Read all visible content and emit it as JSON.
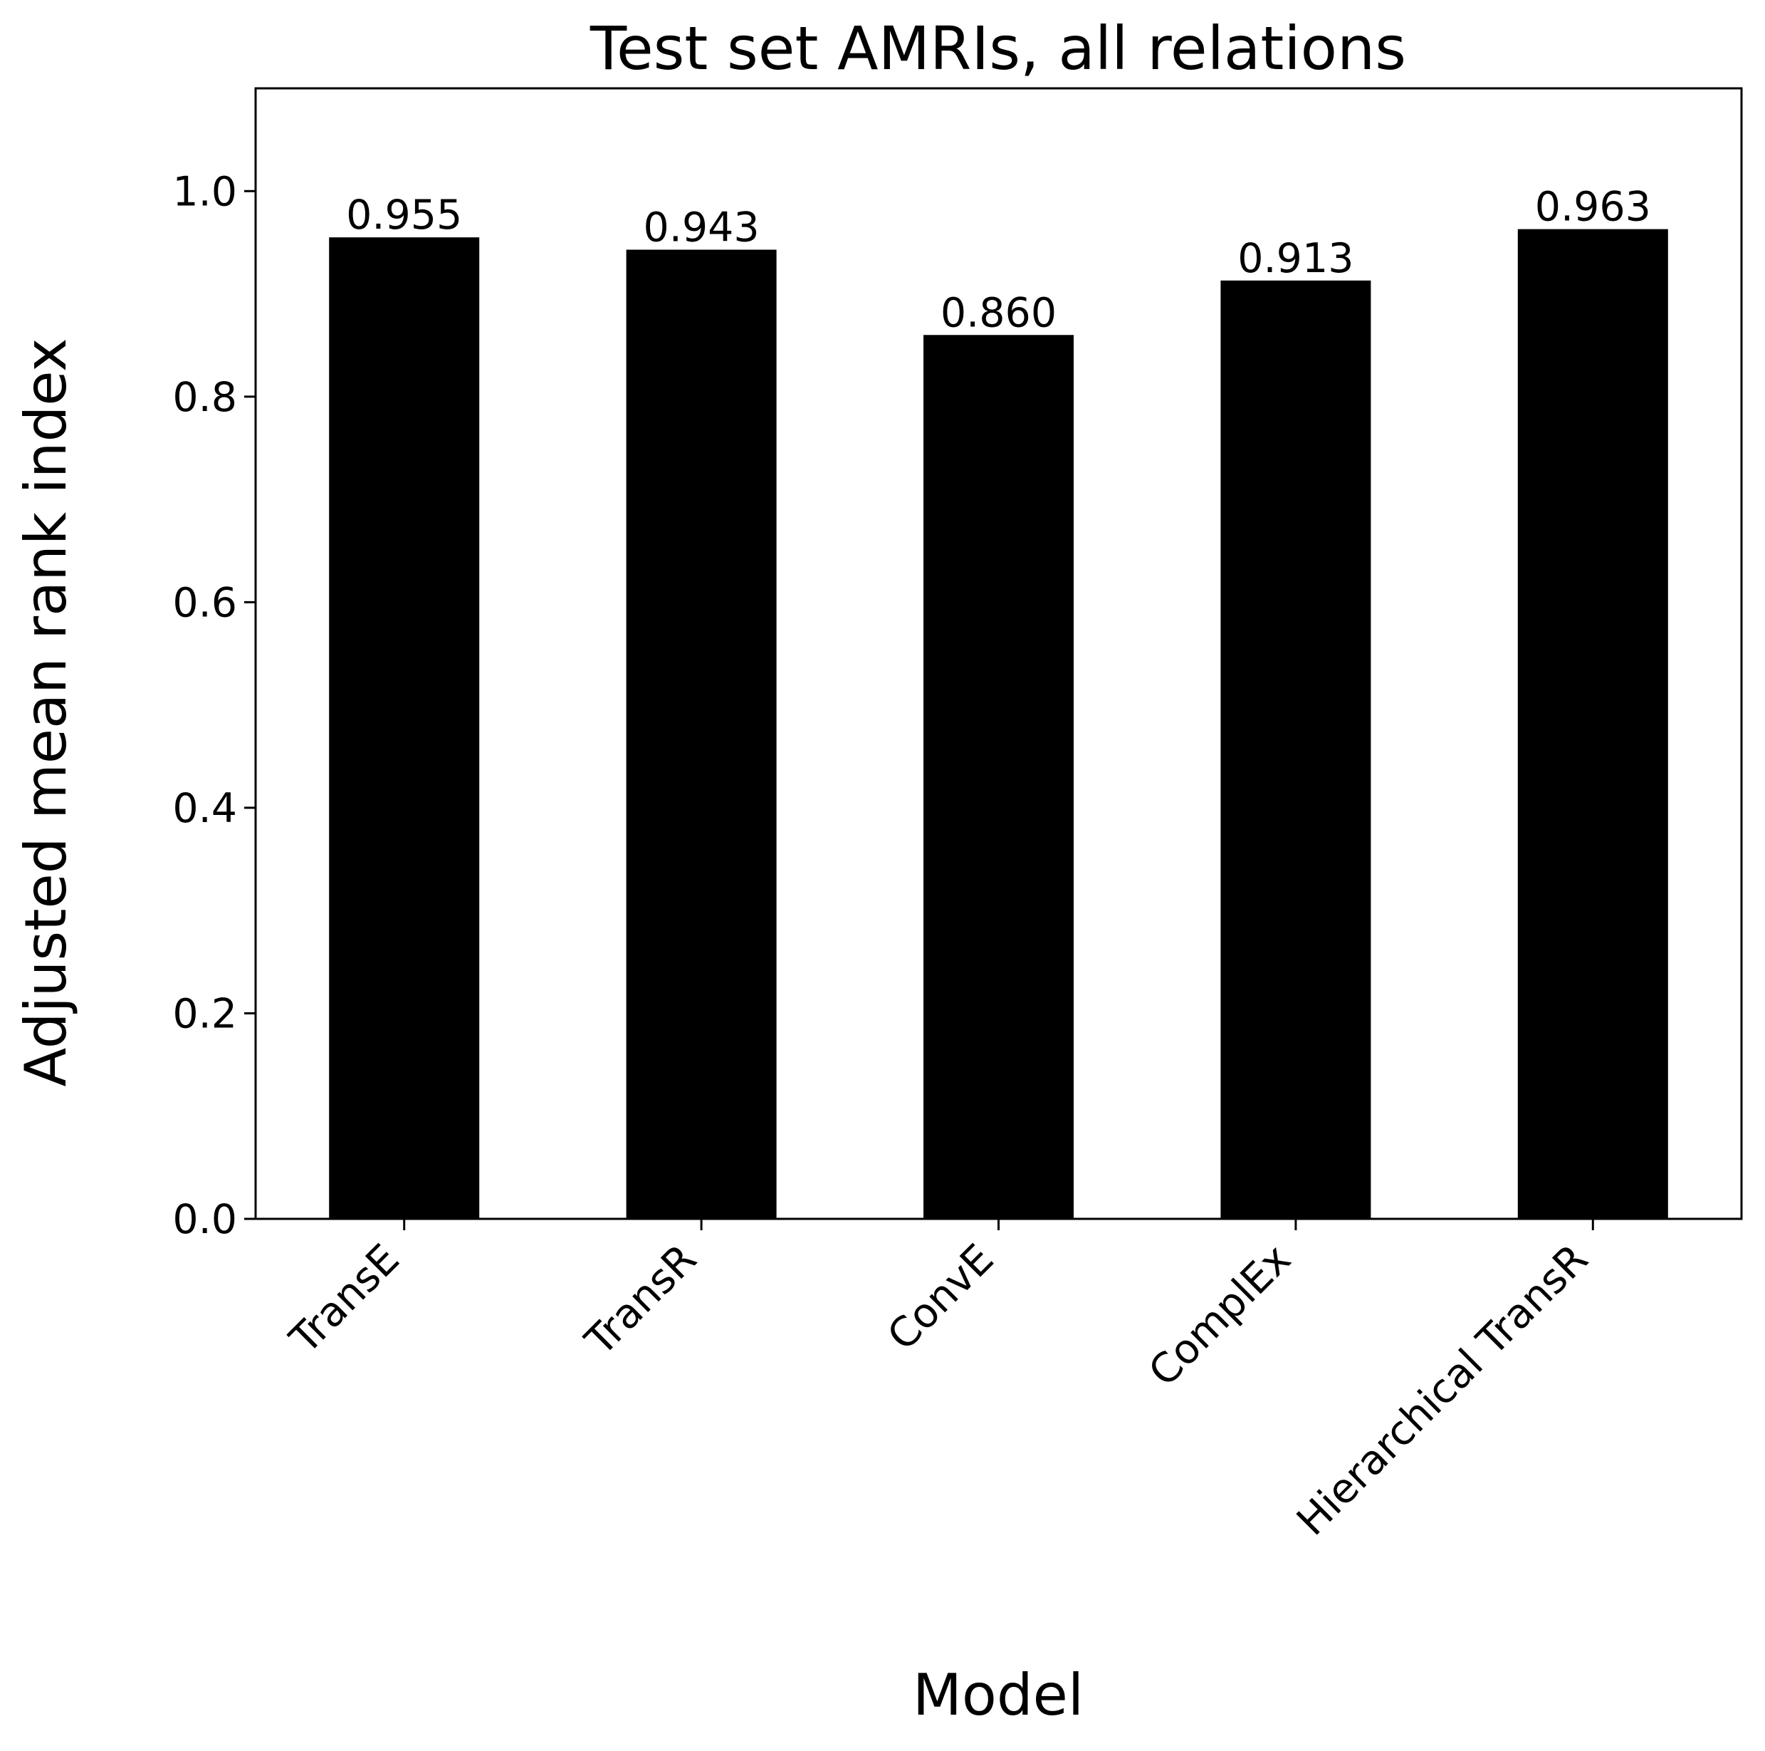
{
  "chart_data": {
    "type": "bar",
    "title": "Test set AMRIs, all relations",
    "xlabel": "Model",
    "ylabel": "Adjusted mean rank index",
    "categories": [
      "TransE",
      "TransR",
      "ConvE",
      "ComplEx",
      "Hierarchical TransR"
    ],
    "values": [
      0.955,
      0.943,
      0.86,
      0.913,
      0.963
    ],
    "value_labels": [
      "0.955",
      "0.943",
      "0.860",
      "0.913",
      "0.963"
    ],
    "ylim": [
      0,
      1.1
    ],
    "yticks": [
      0.0,
      0.2,
      0.4,
      0.6,
      0.8,
      1.0
    ],
    "ytick_labels": [
      "0.0",
      "0.2",
      "0.4",
      "0.6",
      "0.8",
      "1.0"
    ],
    "grid": false,
    "legend": "none",
    "bar_color": "#000000",
    "xtick_rotation": "45 degrees"
  }
}
